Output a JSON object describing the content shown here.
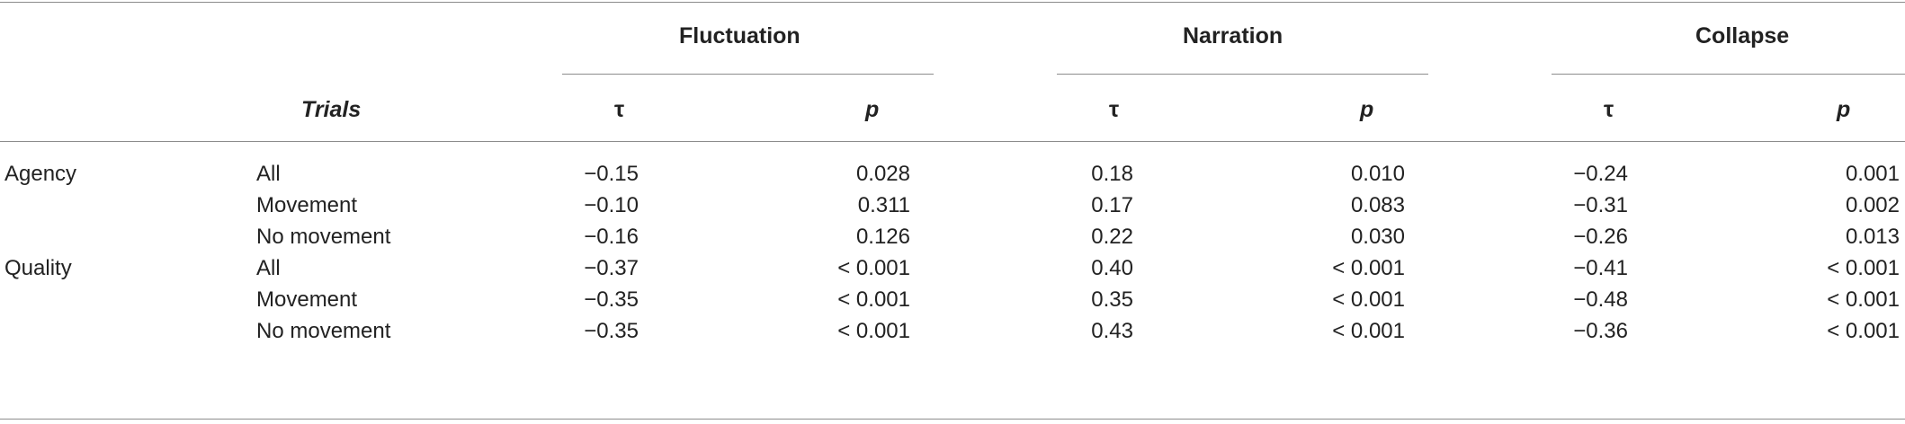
{
  "table": {
    "groups": [
      "Fluctuation",
      "Narration",
      "Collapse"
    ],
    "trials_header": "Trials",
    "tau_label": "τ",
    "p_label": "p",
    "rows": [
      {
        "measure": "Agency",
        "trials": "All",
        "values": [
          "−0.15",
          "0.028",
          "0.18",
          "0.010",
          "−0.24",
          "0.001"
        ]
      },
      {
        "measure": "",
        "trials": "Movement",
        "values": [
          "−0.10",
          "0.311",
          "0.17",
          "0.083",
          "−0.31",
          "0.002"
        ]
      },
      {
        "measure": "",
        "trials": "No movement",
        "values": [
          "−0.16",
          "0.126",
          "0.22",
          "0.030",
          "−0.26",
          "0.013"
        ]
      },
      {
        "measure": "Quality",
        "trials": "All",
        "values": [
          "−0.37",
          "< 0.001",
          "0.40",
          "< 0.001",
          "−0.41",
          "< 0.001"
        ]
      },
      {
        "measure": "",
        "trials": "Movement",
        "values": [
          "−0.35",
          "< 0.001",
          "0.35",
          "< 0.001",
          "−0.48",
          "< 0.001"
        ]
      },
      {
        "measure": "",
        "trials": "No movement",
        "values": [
          "−0.35",
          "< 0.001",
          "0.43",
          "< 0.001",
          "−0.36",
          "< 0.001"
        ]
      }
    ]
  }
}
